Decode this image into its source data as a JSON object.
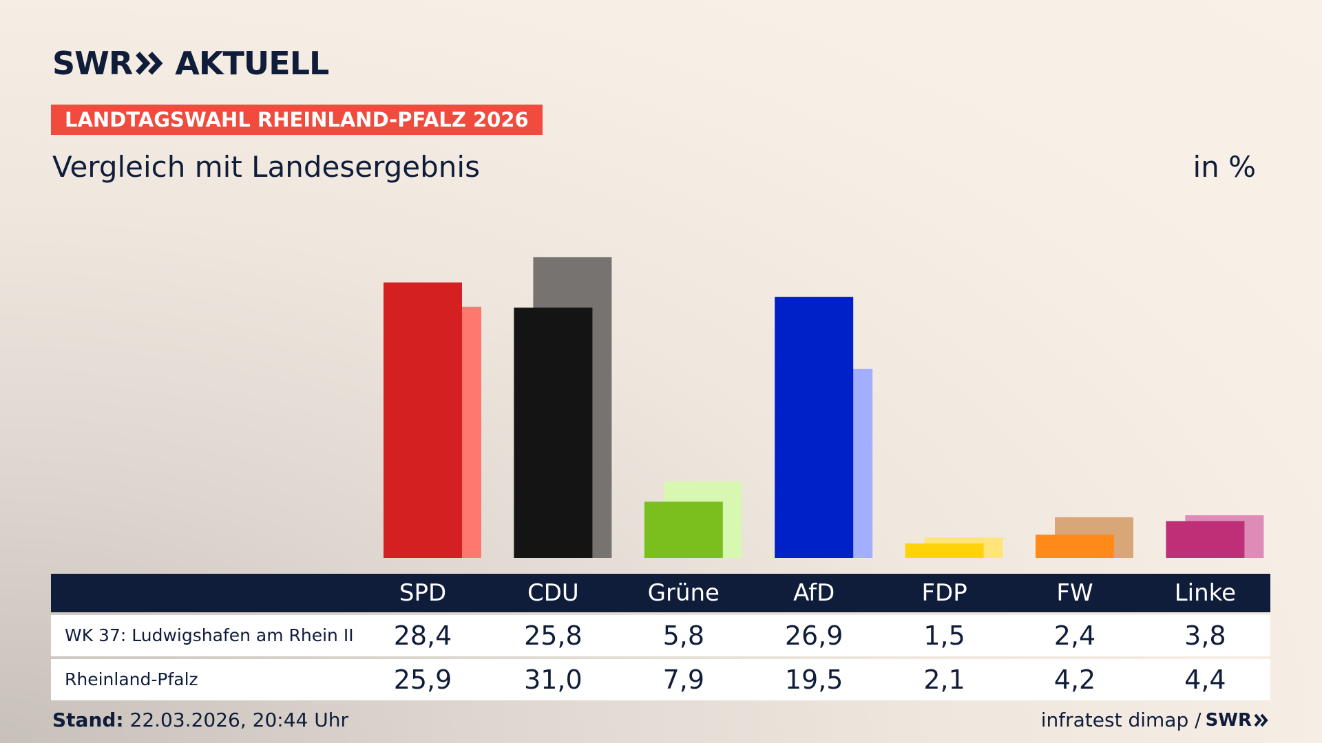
{
  "brand": {
    "name_left": "SWR",
    "name_right": "AKTUELL",
    "icon": "double-chevron-right-icon"
  },
  "badge": "LANDTAGSWAHL RHEINLAND-PFALZ 2026",
  "subtitle": "Vergleich mit Landesergebnis",
  "unit": "in %",
  "colors": {
    "navy": "#0f1c3a",
    "badge": "#f04b3c"
  },
  "chart_data": {
    "type": "bar",
    "categories": [
      "SPD",
      "CDU",
      "Grüne",
      "AfD",
      "FDP",
      "FW",
      "Linke"
    ],
    "series": [
      {
        "name": "WK 37: Ludwigshafen am Rhein II",
        "values": [
          28.4,
          25.8,
          5.8,
          26.9,
          1.5,
          2.4,
          3.8
        ],
        "display": [
          "28,4",
          "25,8",
          "5,8",
          "26,9",
          "1,5",
          "2,4",
          "3,8"
        ],
        "colors": [
          "#d42020",
          "#141414",
          "#7abf1e",
          "#0020c8",
          "#ffd30a",
          "#ff8a17",
          "#bf2f78"
        ]
      },
      {
        "name": "Rheinland-Pfalz",
        "values": [
          25.9,
          31.0,
          7.9,
          19.5,
          2.1,
          4.2,
          4.4
        ],
        "display": [
          "25,9",
          "31,0",
          "7,9",
          "19,5",
          "2,1",
          "4,2",
          "4,4"
        ],
        "colors": [
          "#ff7870",
          "#767370",
          "#d8f7b0",
          "#a4aeff",
          "#ffe47a",
          "#d9a677",
          "#df8bb8"
        ]
      }
    ],
    "ylim": [
      0,
      31
    ],
    "legend": "table-below"
  },
  "footer": {
    "stand_label": "Stand:",
    "stand_value": "22.03.2026, 20:44 Uhr",
    "source": "infratest dimap /",
    "source_logo": "SWR"
  }
}
